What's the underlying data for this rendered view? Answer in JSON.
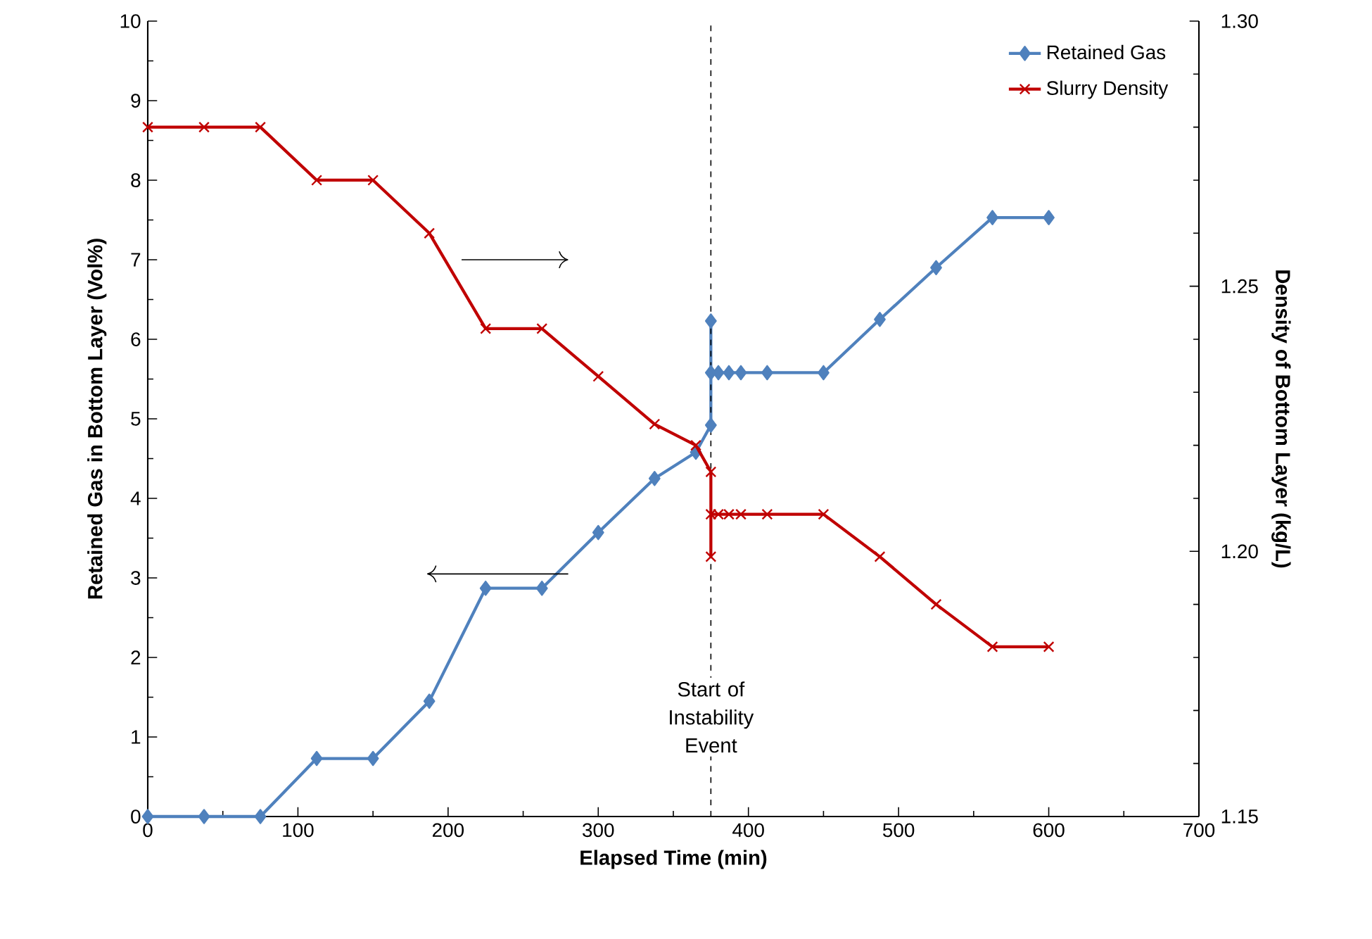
{
  "chart_data": {
    "type": "line",
    "xlabel": "Elapsed Time (min)",
    "ylabel": "Retained Gas in Bottom Layer  (Vol%)",
    "y2label": "Density of Bottom Layer  (kg/L)",
    "xlim": [
      0,
      700
    ],
    "xticks": [
      0,
      100,
      200,
      300,
      400,
      500,
      600,
      700
    ],
    "ylim": [
      0,
      10
    ],
    "yticks": [
      0,
      1,
      2,
      3,
      4,
      5,
      6,
      7,
      8,
      9,
      10
    ],
    "y2lim": [
      1.15,
      1.3
    ],
    "y2ticks": [
      1.15,
      {
        "value": 1.2,
        "label": "1.20"
      },
      1.25,
      {
        "value": 1.3,
        "label": "1.30"
      }
    ],
    "legend": "top right",
    "line_style": "solid",
    "series": [
      {
        "name": "Retained Gas",
        "color": "#4f81bd",
        "marker": "diamond",
        "x": [
          0,
          37.5,
          75,
          112.5,
          150,
          187.5,
          225,
          262.5,
          300,
          337.5,
          365,
          375,
          375,
          375,
          380,
          387,
          395,
          412.5,
          450,
          487.5,
          525,
          562.5,
          600
        ],
        "values": [
          0,
          0,
          0,
          0.73,
          0.73,
          1.45,
          2.87,
          2.87,
          3.57,
          4.25,
          4.58,
          4.92,
          6.23,
          5.58,
          5.58,
          5.58,
          5.58,
          5.58,
          5.58,
          6.25,
          6.9,
          7.53,
          7.53
        ]
      },
      {
        "name": "Slurry Density",
        "color": "#c00000",
        "marker": "cross",
        "axis": "y2",
        "x": [
          0,
          37.5,
          75,
          112.5,
          150,
          187.5,
          225,
          262.5,
          300,
          337.5,
          365,
          375,
          375,
          375,
          380,
          387,
          395,
          412.5,
          450,
          487.5,
          525,
          562.5,
          600
        ],
        "values": [
          1.28,
          1.28,
          1.28,
          1.27,
          1.27,
          1.26,
          1.242,
          1.242,
          1.233,
          1.224,
          1.22,
          1.215,
          1.199,
          1.207,
          1.207,
          1.207,
          1.207,
          1.207,
          1.207,
          1.199,
          1.19,
          1.182,
          1.182
        ]
      }
    ],
    "ref_lines": [
      {
        "axis": "x",
        "value": 375,
        "label": "Start of Instability Event",
        "line_style": "dashed"
      }
    ]
  }
}
